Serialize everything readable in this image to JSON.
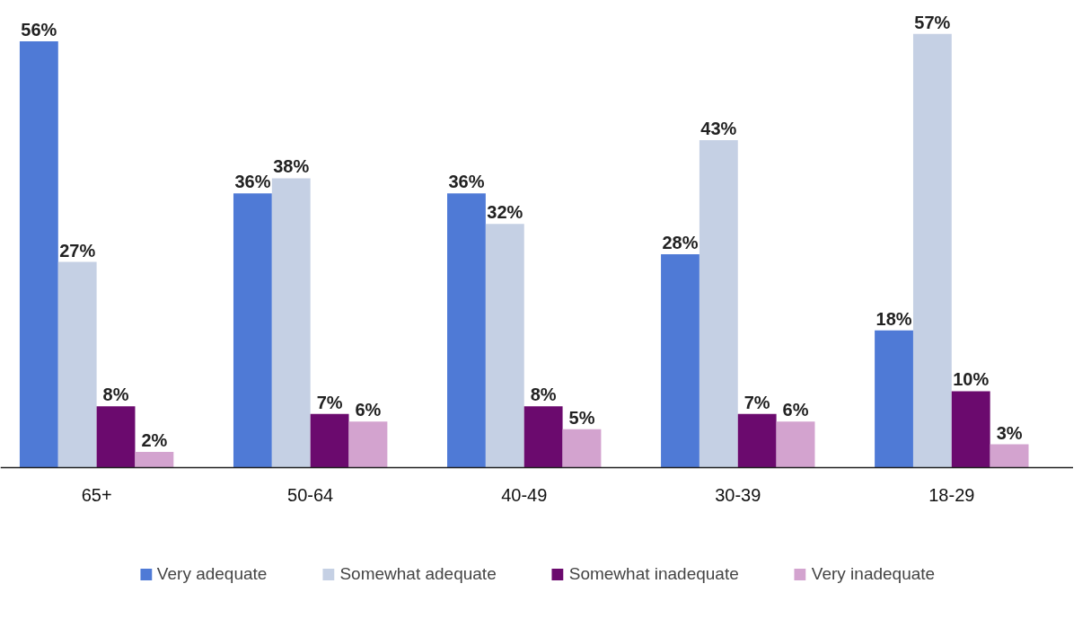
{
  "chart_data": {
    "type": "bar",
    "categories": [
      "65+",
      "50-64",
      "40-49",
      "30-39",
      "18-29"
    ],
    "series": [
      {
        "name": "Very adequate",
        "color": "#4f7ad6",
        "values": [
          56,
          36,
          36,
          28,
          18
        ],
        "value_labels": [
          "56%",
          "36%",
          "36%",
          "28%",
          "18%"
        ]
      },
      {
        "name": "Somewhat adequate",
        "color": "#c5d0e4",
        "values": [
          27,
          38,
          32,
          43,
          57
        ],
        "value_labels": [
          "27%",
          "38%",
          "32%",
          "43%",
          "57%"
        ]
      },
      {
        "name": "Somewhat inadequate",
        "color": "#6b0a6e",
        "values": [
          8,
          7,
          8,
          7,
          10
        ],
        "value_labels": [
          "8%",
          "7%",
          "8%",
          "7%",
          "10%"
        ]
      },
      {
        "name": "Very inadequate",
        "color": "#d3a3cf",
        "values": [
          2,
          6,
          5,
          6,
          3
        ],
        "value_labels": [
          "2%",
          "6%",
          "5%",
          "6%",
          "3%"
        ]
      }
    ],
    "grid": false,
    "legend": "bottom"
  }
}
